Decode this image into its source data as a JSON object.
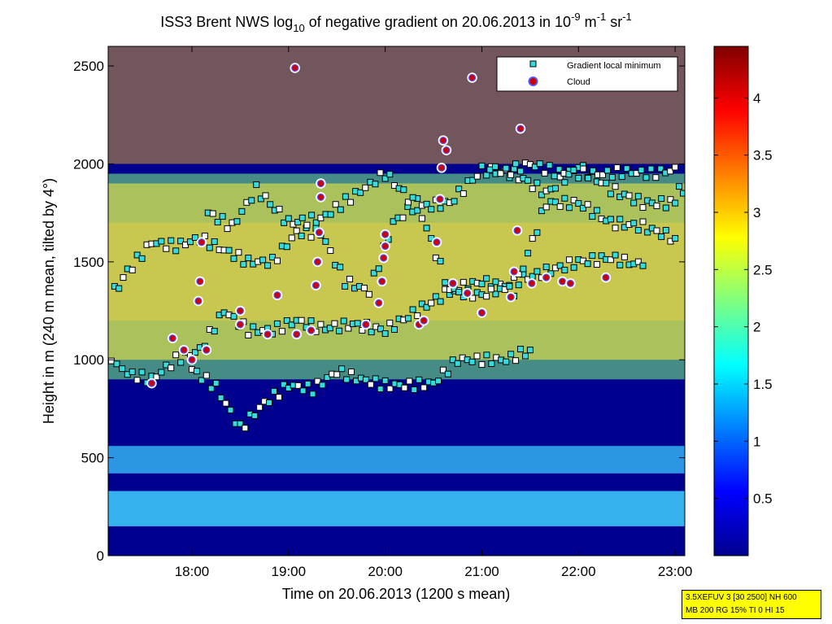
{
  "chart_data": {
    "type": "heatmap",
    "title": {
      "prefix": "ISS3 Brent NWS log",
      "sub": "10",
      "middle": " of negative gradient on 20.06.2013 in 10",
      "exp1": "-9",
      "unit1": " m",
      "exp2": "-1",
      "unit2": " sr",
      "exp3": "-1"
    },
    "xlabel": "Time on 20.06.2013 (1200 s mean)",
    "ylabel": "Height in m (240 m mean, tilted by 4°)",
    "x_ticks": [
      "18:00",
      "19:00",
      "20:00",
      "21:00",
      "22:00",
      "23:00"
    ],
    "y_ticks": [
      0,
      500,
      1000,
      1500,
      2000,
      2500
    ],
    "ylim": [
      0,
      2600
    ],
    "xlim": [
      "17:08",
      "23:06"
    ],
    "colorbar": {
      "ticks": [
        0.5,
        1,
        1.5,
        2,
        2.5,
        3,
        3.5,
        4
      ],
      "range": [
        0,
        4.45
      ],
      "colormap": "jet"
    },
    "legend": {
      "placement": "top-right",
      "entries": [
        {
          "label": "Gradient local minimum",
          "marker": "square",
          "color": "#33dddd"
        },
        {
          "label": "Cloud",
          "marker": "circle",
          "color": "#cc0000"
        }
      ]
    },
    "clouds": [
      {
        "time": "17:35",
        "height": 880
      },
      {
        "time": "17:48",
        "height": 1110
      },
      {
        "time": "17:55",
        "height": 1050
      },
      {
        "time": "18:00",
        "height": 1000
      },
      {
        "time": "18:04",
        "height": 1300
      },
      {
        "time": "18:05",
        "height": 1400
      },
      {
        "time": "18:06",
        "height": 1600
      },
      {
        "time": "18:09",
        "height": 1050
      },
      {
        "time": "18:30",
        "height": 1180
      },
      {
        "time": "18:30",
        "height": 1250
      },
      {
        "time": "18:47",
        "height": 1130
      },
      {
        "time": "18:53",
        "height": 1330
      },
      {
        "time": "19:04",
        "height": 2490
      },
      {
        "time": "19:05",
        "height": 1130
      },
      {
        "time": "19:14",
        "height": 1150
      },
      {
        "time": "19:17",
        "height": 1380
      },
      {
        "time": "19:18",
        "height": 1500
      },
      {
        "time": "19:19",
        "height": 1650
      },
      {
        "time": "19:20",
        "height": 1900
      },
      {
        "time": "19:20",
        "height": 1830
      },
      {
        "time": "19:48",
        "height": 1180
      },
      {
        "time": "19:56",
        "height": 1290
      },
      {
        "time": "19:58",
        "height": 1400
      },
      {
        "time": "19:59",
        "height": 1520
      },
      {
        "time": "20:00",
        "height": 1580
      },
      {
        "time": "20:00",
        "height": 1640
      },
      {
        "time": "20:21",
        "height": 1180
      },
      {
        "time": "20:24",
        "height": 1200
      },
      {
        "time": "20:32",
        "height": 1600
      },
      {
        "time": "20:34",
        "height": 1820
      },
      {
        "time": "20:35",
        "height": 1980
      },
      {
        "time": "20:36",
        "height": 2120
      },
      {
        "time": "20:38",
        "height": 2070
      },
      {
        "time": "20:42",
        "height": 1390
      },
      {
        "time": "20:51",
        "height": 1340
      },
      {
        "time": "20:54",
        "height": 2440
      },
      {
        "time": "21:00",
        "height": 1240
      },
      {
        "time": "21:18",
        "height": 1320
      },
      {
        "time": "21:20",
        "height": 1450
      },
      {
        "time": "21:22",
        "height": 1660
      },
      {
        "time": "21:24",
        "height": 2180
      },
      {
        "time": "21:31",
        "height": 1390
      },
      {
        "time": "21:40",
        "height": 1420
      },
      {
        "time": "21:50",
        "height": 1400
      },
      {
        "time": "21:55",
        "height": 1390
      },
      {
        "time": "22:17",
        "height": 1420
      }
    ],
    "gradient_minima_tracks": [
      {
        "name": "track-1",
        "points": [
          [
            "17:10",
            1000
          ],
          [
            "17:20",
            930
          ],
          [
            "17:35",
            900
          ],
          [
            "17:50",
            1000
          ],
          [
            "18:05",
            1050
          ],
          [
            "18:20",
            1250
          ],
          [
            "18:35",
            1150
          ],
          [
            "18:50",
            1150
          ],
          [
            "19:05",
            1200
          ],
          [
            "19:20",
            1160
          ],
          [
            "19:40",
            1180
          ],
          [
            "20:00",
            1150
          ],
          [
            "20:20",
            1250
          ],
          [
            "20:40",
            1350
          ],
          [
            "21:00",
            1330
          ],
          [
            "21:20",
            1400
          ],
          [
            "21:40",
            1450
          ],
          [
            "22:00",
            1500
          ],
          [
            "22:20",
            1520
          ],
          [
            "22:40",
            1480
          ]
        ]
      },
      {
        "name": "track-2",
        "points": [
          [
            "17:12",
            1350
          ],
          [
            "17:20",
            1450
          ],
          [
            "17:35",
            1600
          ],
          [
            "17:50",
            1580
          ],
          [
            "18:05",
            1620
          ],
          [
            "18:20",
            1560
          ],
          [
            "18:35",
            1500
          ],
          [
            "18:50",
            1500
          ],
          [
            "19:05",
            1650
          ],
          [
            "19:20",
            1650
          ],
          [
            "19:35",
            1400
          ],
          [
            "19:50",
            1350
          ],
          [
            "20:05",
            1700
          ],
          [
            "20:20",
            1800
          ],
          [
            "20:40",
            1350
          ],
          [
            "21:00",
            1400
          ],
          [
            "21:20",
            1350
          ],
          [
            "21:40",
            1800
          ],
          [
            "22:00",
            1800
          ],
          [
            "22:20",
            1700
          ],
          [
            "22:40",
            1680
          ],
          [
            "23:00",
            1620
          ]
        ]
      },
      {
        "name": "track-3",
        "points": [
          [
            "18:10",
            1750
          ],
          [
            "18:25",
            1680
          ],
          [
            "18:40",
            1870
          ],
          [
            "19:00",
            1700
          ],
          [
            "19:20",
            1720
          ],
          [
            "20:00",
            1950
          ],
          [
            "20:20",
            1780
          ],
          [
            "20:40",
            1800
          ],
          [
            "21:00",
            1970
          ],
          [
            "21:20",
            1950
          ],
          [
            "21:40",
            1850
          ],
          [
            "22:00",
            1990
          ],
          [
            "22:20",
            1870
          ],
          [
            "22:40",
            1800
          ],
          [
            "23:00",
            1800
          ]
        ]
      },
      {
        "name": "track-4",
        "points": [
          [
            "18:00",
            950
          ],
          [
            "18:15",
            860
          ],
          [
            "18:30",
            650
          ],
          [
            "18:45",
            780
          ],
          [
            "19:00",
            870
          ],
          [
            "19:15",
            850
          ],
          [
            "19:30",
            940
          ],
          [
            "19:45",
            900
          ],
          [
            "20:00",
            870
          ],
          [
            "20:15",
            870
          ],
          [
            "20:30",
            880
          ],
          [
            "20:45",
            1000
          ],
          [
            "21:00",
            1000
          ],
          [
            "21:15",
            1000
          ],
          [
            "21:30",
            1050
          ]
        ]
      },
      {
        "name": "track-5",
        "points": [
          [
            "21:05",
            1980
          ],
          [
            "21:15",
            1960
          ],
          [
            "21:30",
            2000
          ],
          [
            "21:45",
            1960
          ],
          [
            "22:00",
            1950
          ],
          [
            "22:15",
            1950
          ],
          [
            "22:30",
            1960
          ],
          [
            "22:45",
            1950
          ],
          [
            "23:00",
            1970
          ],
          [
            "23:05",
            1850
          ]
        ]
      }
    ]
  },
  "info_box": {
    "line1": "3.5XEFUV 3 [30 2500] NH 600",
    "line2": "MB 200 RG 15% TI 0 HI 15"
  }
}
